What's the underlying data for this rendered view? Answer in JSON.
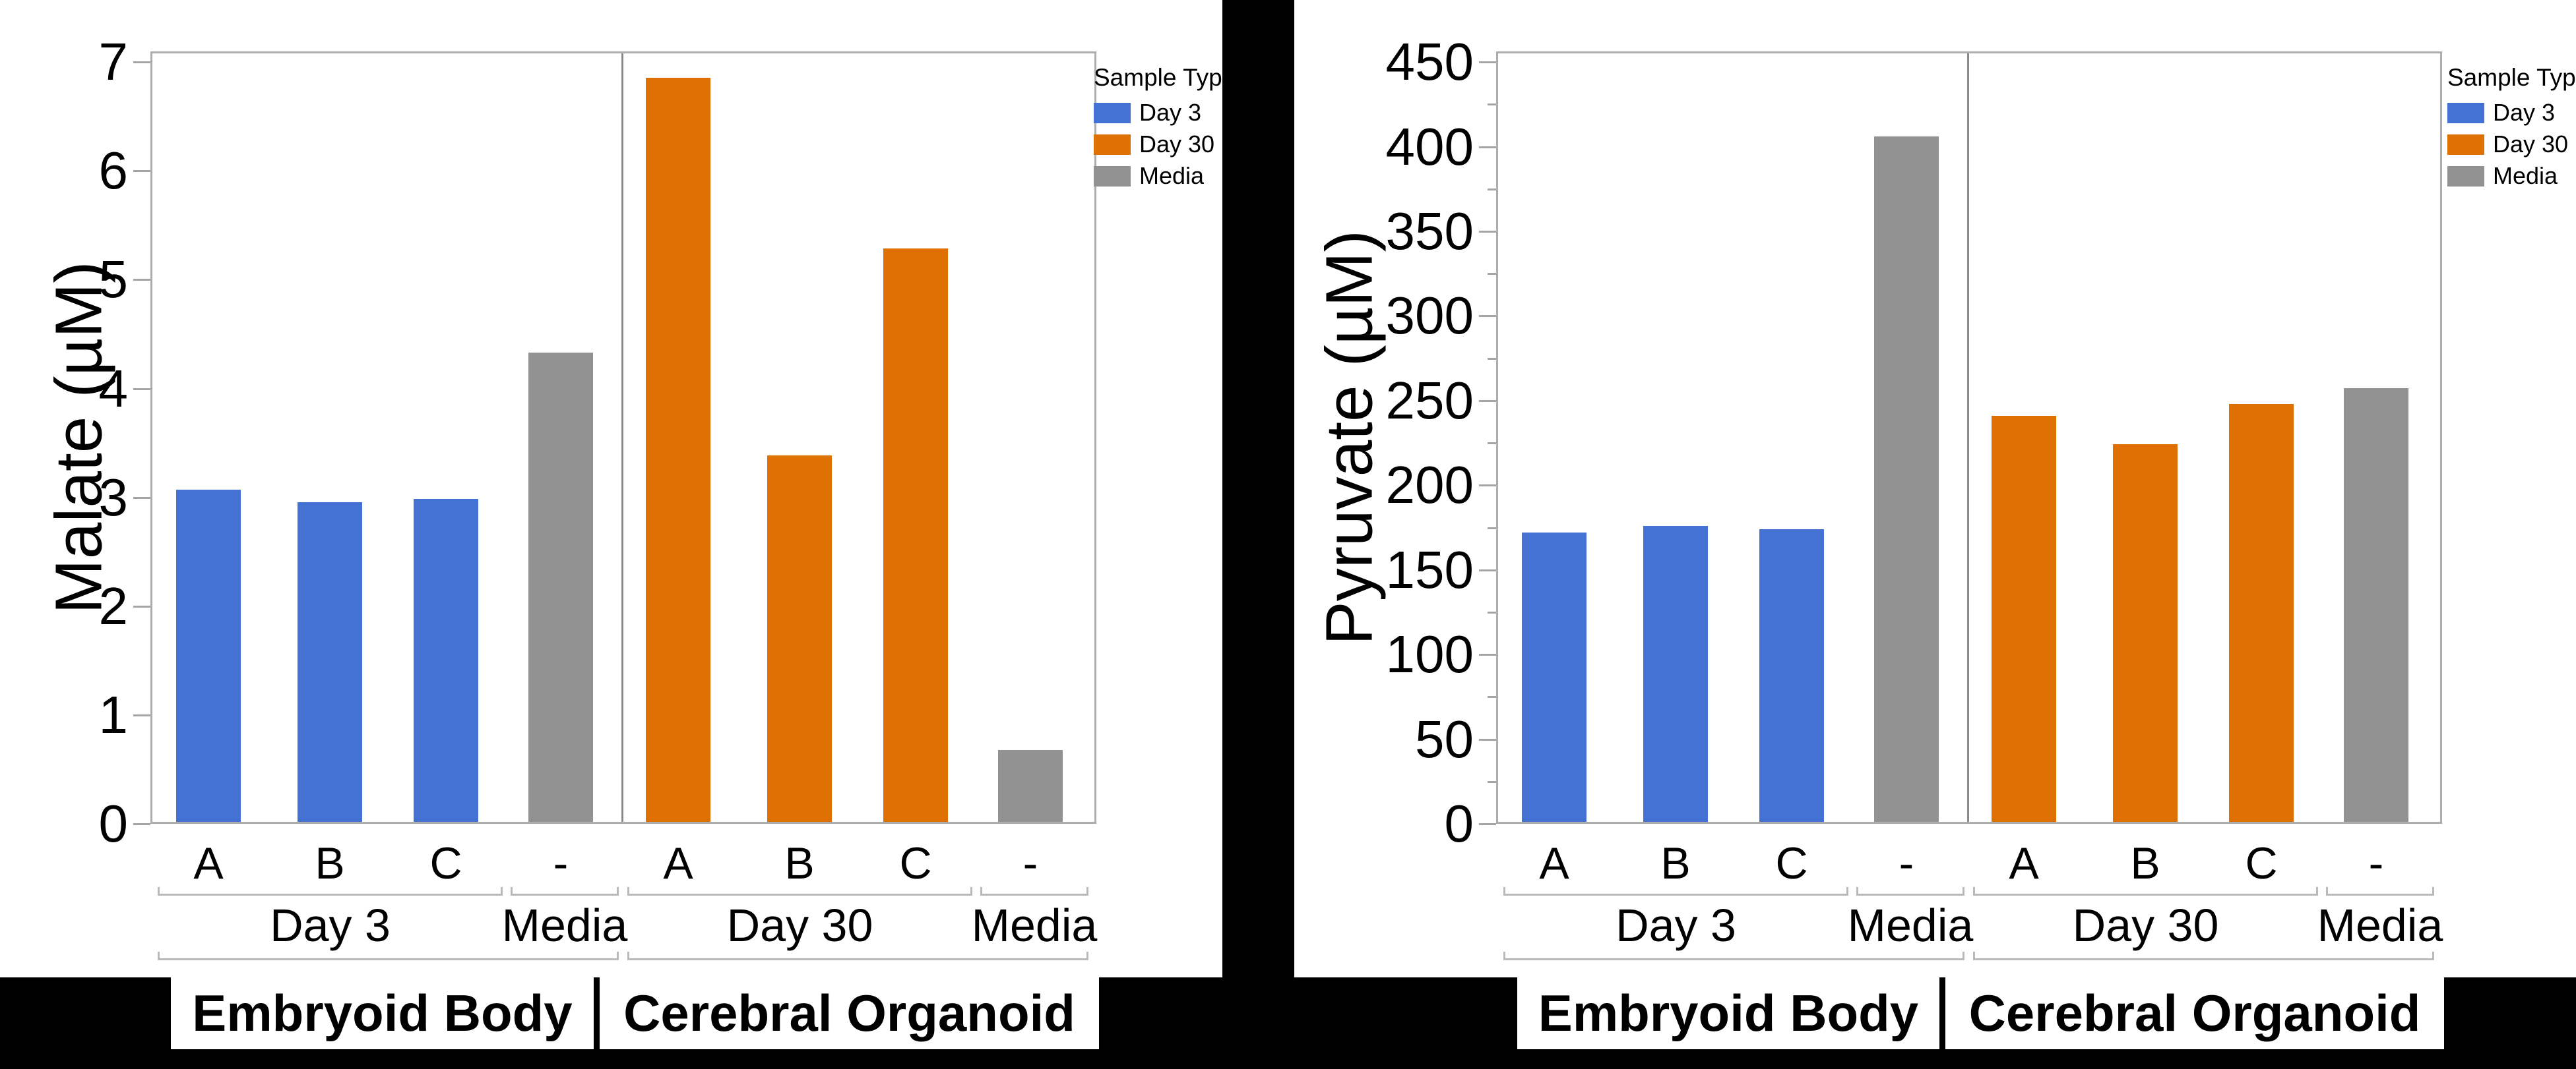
{
  "figure": {
    "background": "#000000"
  },
  "legend": {
    "title": "Sample Type",
    "entries": [
      {
        "label": "Day 3",
        "series": "Day 3"
      },
      {
        "label": "Day 30",
        "series": "Day 30"
      },
      {
        "label": "Media",
        "series": "Media"
      }
    ]
  },
  "series_colors": {
    "Day 3": "#4472D4",
    "Day 30": "#DE7004",
    "Media": "#929292"
  },
  "chart_data": [
    {
      "type": "bar",
      "title": "",
      "ylabel": "Malate (µM)",
      "ylim": [
        0,
        7
      ],
      "ytick_step": 1,
      "yminor_step": null,
      "grid": false,
      "legend_position": "top-right",
      "panels": [
        {
          "label": "Embryoid Body",
          "groups": [
            {
              "label": "Day 3",
              "series": "Day 3",
              "bars": [
                {
                  "category": "A",
                  "value": 3.05
                },
                {
                  "category": "B",
                  "value": 2.94
                },
                {
                  "category": "C",
                  "value": 2.97
                }
              ]
            },
            {
              "label": "Media",
              "series": "Media",
              "bars": [
                {
                  "category": "-",
                  "value": 4.31
                }
              ]
            }
          ]
        },
        {
          "label": "Cerebral Organoid",
          "groups": [
            {
              "label": "Day 30",
              "series": "Day 30",
              "bars": [
                {
                  "category": "A",
                  "value": 6.84
                },
                {
                  "category": "B",
                  "value": 3.37
                },
                {
                  "category": "C",
                  "value": 5.27
                }
              ]
            },
            {
              "label": "Media",
              "series": "Media",
              "bars": [
                {
                  "category": "-",
                  "value": 0.66
                }
              ]
            }
          ]
        }
      ]
    },
    {
      "type": "bar",
      "title": "",
      "ylabel": "Pyruvate (µM)",
      "ylim": [
        0,
        450
      ],
      "ytick_step": 50,
      "yminor_step": 25,
      "grid": false,
      "legend_position": "top-right",
      "panels": [
        {
          "label": "Embryoid Body",
          "groups": [
            {
              "label": "Day 3",
              "series": "Day 3",
              "bars": [
                {
                  "category": "A",
                  "value": 171
                },
                {
                  "category": "B",
                  "value": 175
                },
                {
                  "category": "C",
                  "value": 173
                }
              ]
            },
            {
              "label": "Media",
              "series": "Media",
              "bars": [
                {
                  "category": "-",
                  "value": 405
                }
              ]
            }
          ]
        },
        {
          "label": "Cerebral Organoid",
          "groups": [
            {
              "label": "Day 30",
              "series": "Day 30",
              "bars": [
                {
                  "category": "A",
                  "value": 240
                },
                {
                  "category": "B",
                  "value": 223
                },
                {
                  "category": "C",
                  "value": 247
                }
              ]
            },
            {
              "label": "Media",
              "series": "Media",
              "bars": [
                {
                  "category": "-",
                  "value": 256
                }
              ]
            }
          ]
        }
      ]
    }
  ]
}
